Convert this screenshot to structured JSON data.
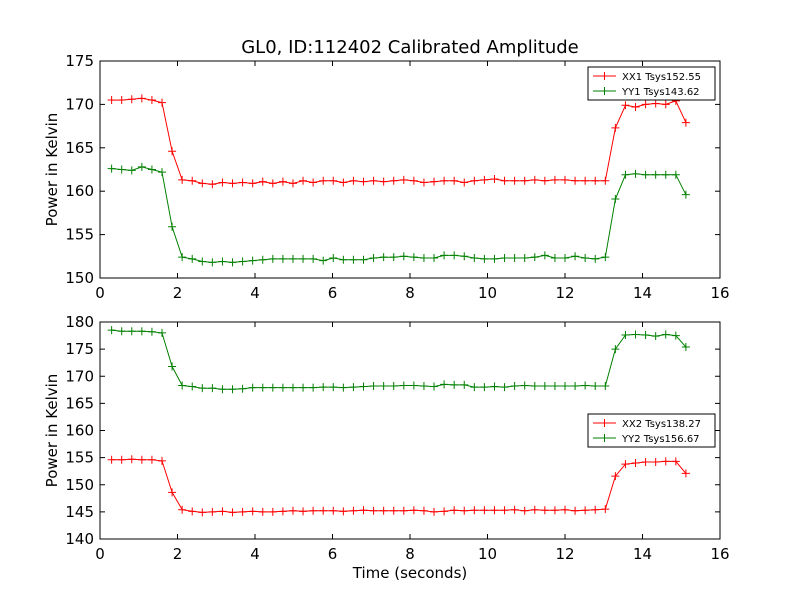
{
  "figure": {
    "title": "GL0, ID:112402 Calibrated Amplitude",
    "xlabel": "Time (seconds)"
  },
  "chart_data": [
    {
      "type": "line",
      "ylabel": "Power in Kelvin",
      "xlim": [
        0,
        16
      ],
      "ylim": [
        150,
        175
      ],
      "xticks": [
        0,
        2,
        4,
        6,
        8,
        10,
        12,
        14,
        16
      ],
      "yticks": [
        150,
        155,
        160,
        165,
        170,
        175
      ],
      "legend_position": "top-right",
      "x": [
        0.3,
        0.56,
        0.82,
        1.08,
        1.34,
        1.6,
        1.86,
        2.12,
        2.38,
        2.64,
        2.9,
        3.16,
        3.42,
        3.68,
        3.94,
        4.2,
        4.46,
        4.72,
        4.98,
        5.24,
        5.5,
        5.76,
        6.02,
        6.28,
        6.54,
        6.8,
        7.06,
        7.32,
        7.58,
        7.84,
        8.1,
        8.36,
        8.62,
        8.88,
        9.14,
        9.4,
        9.66,
        9.92,
        10.18,
        10.44,
        10.7,
        10.96,
        11.22,
        11.48,
        11.74,
        12.0,
        12.26,
        12.52,
        12.78,
        13.04,
        13.3,
        13.56,
        13.82,
        14.08,
        14.34,
        14.6,
        14.86,
        15.12
      ],
      "series": [
        {
          "name": "XX1 Tsys152.55",
          "color": "#ff0000",
          "values": [
            170.5,
            170.5,
            170.6,
            170.7,
            170.5,
            170.2,
            164.6,
            161.3,
            161.2,
            160.9,
            160.8,
            161.0,
            160.9,
            161.0,
            160.9,
            161.1,
            160.9,
            161.1,
            160.9,
            161.2,
            161.0,
            161.2,
            161.2,
            161.0,
            161.2,
            161.1,
            161.2,
            161.1,
            161.2,
            161.3,
            161.2,
            161.0,
            161.1,
            161.2,
            161.2,
            161.0,
            161.2,
            161.3,
            161.4,
            161.2,
            161.2,
            161.2,
            161.3,
            161.2,
            161.3,
            161.3,
            161.2,
            161.2,
            161.2,
            161.2,
            167.3,
            169.9,
            169.7,
            170.0,
            170.1,
            170.0,
            170.4,
            167.9
          ]
        },
        {
          "name": "YY1 Tsys143.62",
          "color": "#008000",
          "values": [
            162.6,
            162.5,
            162.4,
            162.8,
            162.5,
            162.2,
            155.9,
            152.4,
            152.2,
            151.9,
            151.8,
            151.9,
            151.8,
            151.9,
            152.0,
            152.1,
            152.2,
            152.2,
            152.2,
            152.2,
            152.2,
            152.0,
            152.3,
            152.1,
            152.1,
            152.1,
            152.3,
            152.4,
            152.4,
            152.5,
            152.4,
            152.3,
            152.3,
            152.6,
            152.6,
            152.5,
            152.3,
            152.2,
            152.2,
            152.3,
            152.3,
            152.3,
            152.4,
            152.6,
            152.3,
            152.3,
            152.5,
            152.3,
            152.2,
            152.4,
            159.1,
            161.9,
            162.0,
            161.9,
            161.9,
            161.9,
            161.9,
            159.6
          ]
        }
      ]
    },
    {
      "type": "line",
      "ylabel": "Power in Kelvin",
      "xlim": [
        0,
        16
      ],
      "ylim": [
        140,
        180
      ],
      "xticks": [
        0,
        2,
        4,
        6,
        8,
        10,
        12,
        14,
        16
      ],
      "yticks": [
        140,
        145,
        150,
        155,
        160,
        165,
        170,
        175,
        180
      ],
      "legend_position": "center-right",
      "x": [
        0.3,
        0.56,
        0.82,
        1.08,
        1.34,
        1.6,
        1.86,
        2.12,
        2.38,
        2.64,
        2.9,
        3.16,
        3.42,
        3.68,
        3.94,
        4.2,
        4.46,
        4.72,
        4.98,
        5.24,
        5.5,
        5.76,
        6.02,
        6.28,
        6.54,
        6.8,
        7.06,
        7.32,
        7.58,
        7.84,
        8.1,
        8.36,
        8.62,
        8.88,
        9.14,
        9.4,
        9.66,
        9.92,
        10.18,
        10.44,
        10.7,
        10.96,
        11.22,
        11.48,
        11.74,
        12.0,
        12.26,
        12.52,
        12.78,
        13.04,
        13.3,
        13.56,
        13.82,
        14.08,
        14.34,
        14.6,
        14.86,
        15.12
      ],
      "series": [
        {
          "name": "XX2 Tsys138.27",
          "color": "#ff0000",
          "values": [
            154.6,
            154.6,
            154.7,
            154.6,
            154.6,
            154.4,
            148.6,
            145.4,
            145.1,
            144.9,
            145.0,
            145.1,
            144.9,
            145.0,
            145.1,
            145.0,
            145.0,
            145.1,
            145.2,
            145.1,
            145.2,
            145.2,
            145.2,
            145.1,
            145.2,
            145.3,
            145.2,
            145.2,
            145.2,
            145.2,
            145.3,
            145.2,
            145.0,
            145.1,
            145.3,
            145.2,
            145.3,
            145.3,
            145.3,
            145.3,
            145.4,
            145.2,
            145.4,
            145.3,
            145.3,
            145.4,
            145.2,
            145.3,
            145.4,
            145.5,
            151.6,
            153.8,
            154.0,
            154.2,
            154.2,
            154.3,
            154.3,
            152.1
          ]
        },
        {
          "name": "YY2 Tsys156.67",
          "color": "#008000",
          "values": [
            178.5,
            178.3,
            178.3,
            178.3,
            178.2,
            178.0,
            171.8,
            168.3,
            168.1,
            167.8,
            167.8,
            167.6,
            167.6,
            167.7,
            167.9,
            167.9,
            167.9,
            167.9,
            167.9,
            167.9,
            167.9,
            168.0,
            168.0,
            167.9,
            168.0,
            168.1,
            168.2,
            168.2,
            168.2,
            168.3,
            168.3,
            168.2,
            168.1,
            168.5,
            168.4,
            168.4,
            168.0,
            168.0,
            168.1,
            168.0,
            168.2,
            168.3,
            168.2,
            168.2,
            168.2,
            168.2,
            168.2,
            168.3,
            168.2,
            168.2,
            175.0,
            177.6,
            177.7,
            177.6,
            177.4,
            177.7,
            177.5,
            175.4
          ]
        }
      ]
    }
  ]
}
